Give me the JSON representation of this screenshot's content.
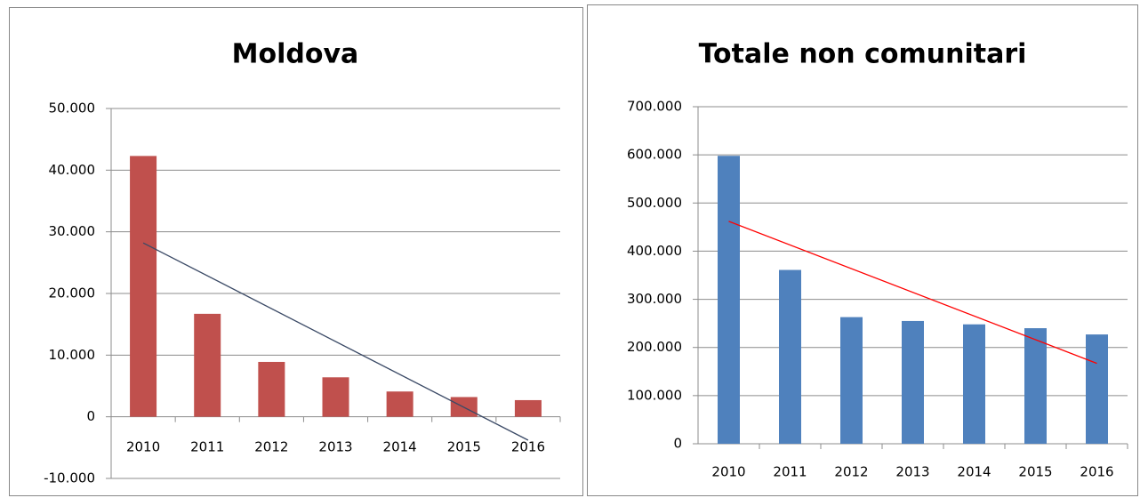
{
  "chart_data": [
    {
      "type": "bar",
      "title": "Moldova",
      "categories": [
        "2010",
        "2011",
        "2012",
        "2013",
        "2014",
        "2015",
        "2016"
      ],
      "values": [
        42300,
        16700,
        8900,
        6400,
        4100,
        3200,
        2700
      ],
      "color": "#c0504d",
      "trendline": {
        "color": "#3b4a66",
        "start": 28200,
        "end": -3800
      },
      "ylim": [
        -10000,
        50000
      ],
      "yticks": [
        {
          "value": -10000,
          "label": "-10.000"
        },
        0,
        {
          "value": 10000,
          "label": "10.000"
        },
        {
          "value": 20000,
          "label": "20.000"
        },
        {
          "value": 30000,
          "label": "30.000"
        },
        {
          "value": 40000,
          "label": "40.000"
        },
        {
          "value": 50000,
          "label": "50.000"
        }
      ],
      "grid": true
    },
    {
      "type": "bar",
      "title": "Totale non comunitari",
      "categories": [
        "2010",
        "2011",
        "2012",
        "2013",
        "2014",
        "2015",
        "2016"
      ],
      "values": [
        598000,
        361000,
        263000,
        255000,
        248000,
        240000,
        227000
      ],
      "color": "#4f81bd",
      "trendline": {
        "color": "#ff0000",
        "start": 462000,
        "end": 167000
      },
      "ylim": [
        0,
        700000
      ],
      "yticks": [
        0,
        {
          "value": 100000,
          "label": "100.000"
        },
        {
          "value": 200000,
          "label": "200.000"
        },
        {
          "value": 300000,
          "label": "300.000"
        },
        {
          "value": 400000,
          "label": "400.000"
        },
        {
          "value": 500000,
          "label": "500.000"
        },
        {
          "value": 600000,
          "label": "600.000"
        },
        {
          "value": 700000,
          "label": "700.000"
        }
      ],
      "grid": true
    }
  ]
}
